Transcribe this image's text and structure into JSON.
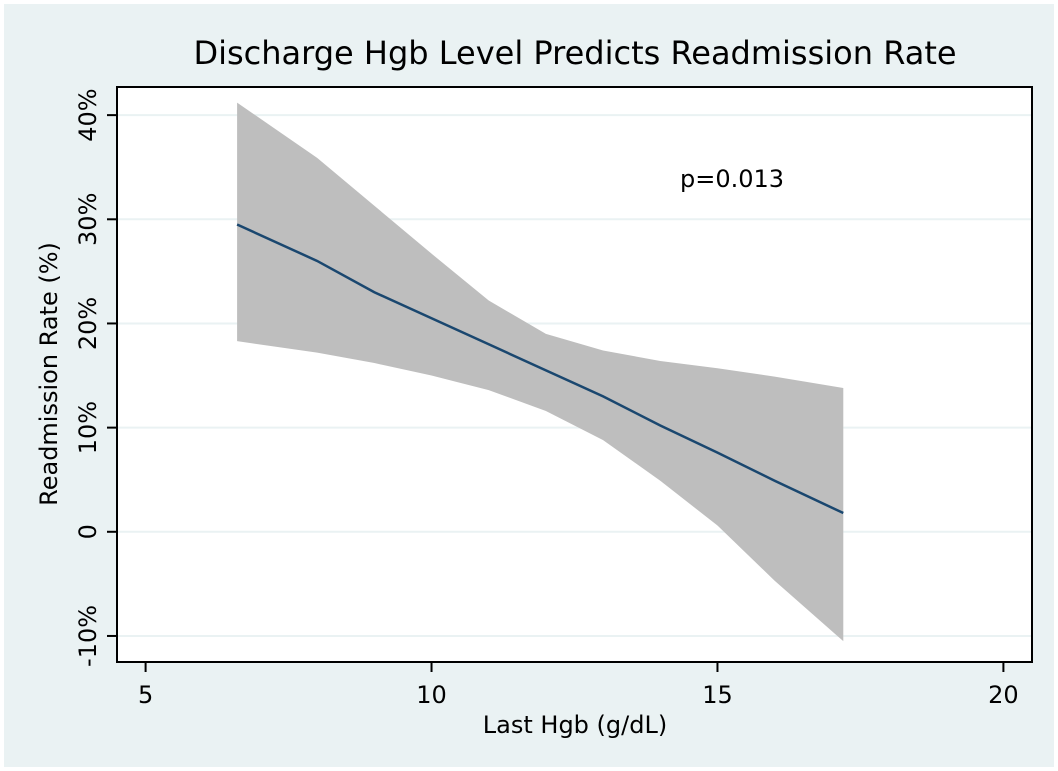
{
  "chart_data": {
    "type": "line_band",
    "title": "Discharge Hgb Level Predicts Readmission Rate",
    "x_label": "Last Hgb (g/dL)",
    "y_label": "Readmission Rate (%)",
    "annotations": [
      "p=0.013"
    ],
    "x": [
      6.6,
      8,
      9,
      10,
      11,
      12,
      13,
      14,
      15,
      16,
      17.2
    ],
    "values": [
      29.5,
      26,
      23,
      20.5,
      18,
      15.5,
      13,
      10.2,
      7.6,
      4.9,
      1.8
    ],
    "upper": [
      41.2,
      35.9,
      31.3,
      26.7,
      22.2,
      19,
      17.4,
      16.4,
      15.7,
      14.9,
      13.8
    ],
    "lower": [
      18.3,
      17.2,
      16.2,
      15,
      13.6,
      11.6,
      8.8,
      4.9,
      0.6,
      -4.7,
      -10.5
    ],
    "color": "#1a476f",
    "band_color": "#bebebe",
    "xlim": [
      4.5,
      20.5
    ],
    "xticks": [
      5,
      10,
      15,
      20
    ],
    "ylim": [
      -12.5,
      42.7
    ],
    "yticks": [
      {
        "value": -10,
        "label": "-10%"
      },
      0,
      {
        "value": 10,
        "label": "10%"
      },
      {
        "value": 20,
        "label": "20%"
      },
      {
        "value": 30,
        "label": "30%"
      },
      {
        "value": 40,
        "label": "40%"
      }
    ],
    "grid": true
  }
}
